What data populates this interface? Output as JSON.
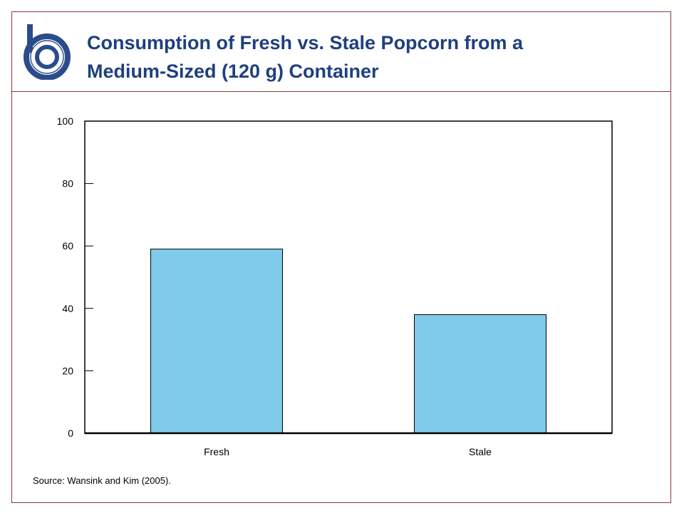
{
  "slide": {
    "title_line1": "Consumption of Fresh vs. Stale Popcorn from a",
    "title_line2": "Medium-Sized (120 g) Container",
    "source": "Source: Wansink and Kim (2005).",
    "logo_icon": "b-logo-icon",
    "colors": {
      "title": "#1f3f7f",
      "frame": "#8b3a3a",
      "logo": "#2b4c8c",
      "bar": "#80cbea"
    }
  },
  "chart_data": {
    "type": "bar",
    "categories": [
      "Fresh",
      "Stale"
    ],
    "values": [
      59,
      38
    ],
    "title": "",
    "xlabel": "",
    "ylabel": "",
    "ylim": [
      0,
      100
    ],
    "yticks": [
      0,
      20,
      40,
      60,
      80,
      100
    ],
    "grid": false,
    "legend": "none"
  }
}
